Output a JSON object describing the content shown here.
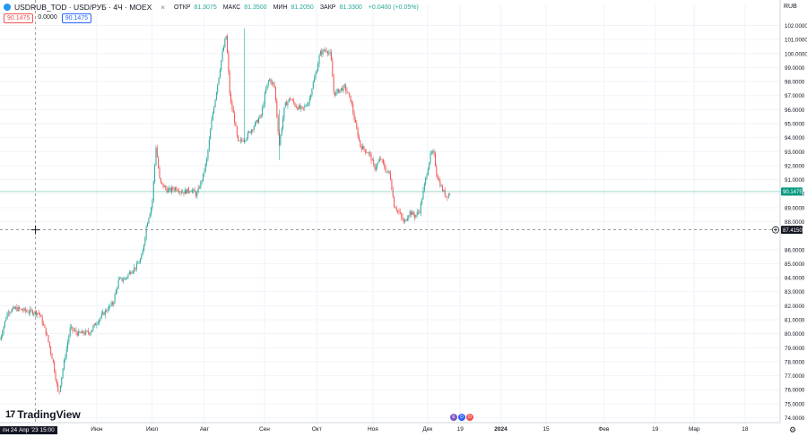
{
  "header": {
    "symbol": "USDRUB_TOD · USD/РУБ · 4Ч · MOEX",
    "open_label": "ОТКР",
    "open_value": "81.3075",
    "high_label": "МАКС",
    "high_value": "81.3500",
    "low_label": "МИН",
    "low_value": "81.2050",
    "close_label": "ЗАКР",
    "close_value": "81.3300",
    "change_value": "+0.0400 (+0.05%)",
    "close_glyph": "×"
  },
  "boxes": {
    "left": "90.1475",
    "middle": "0.0000",
    "right": "90.1475"
  },
  "currency": "RUB",
  "logo_text": "TradingView",
  "logo_mark": "17",
  "gear_glyph": "⚙",
  "events": [
    "E",
    "D",
    "D"
  ],
  "crosshair": {
    "date_label": "пн 24 Апр '23 15:00",
    "price_label": "87.4150",
    "price": 87.415,
    "x_fraction": 0.0455
  },
  "colors": {
    "up": "#26a69a",
    "down": "#ef5350",
    "last_price": "#089981",
    "crosshair_tag": "#131722",
    "grid": "#f0f3fa"
  },
  "chart_data": {
    "type": "candlestick",
    "x_labels": [
      "Июн",
      "Июл",
      "Авг",
      "Сен",
      "Окт",
      "Ноя",
      "Дек",
      "19",
      "2024",
      "15",
      "Фев",
      "19",
      "Мар",
      "18"
    ],
    "x_label_fraction": [
      0.124,
      0.195,
      0.262,
      0.339,
      0.406,
      0.478,
      0.548,
      0.59,
      0.642,
      0.7,
      0.774,
      0.84,
      0.89,
      0.955
    ],
    "y_ticks": [
      "102.0000",
      "101.0000",
      "100.0000",
      "99.0000",
      "98.0000",
      "97.0000",
      "96.0000",
      "95.0000",
      "94.0000",
      "93.0000",
      "92.0000",
      "91.0000",
      "90.0000",
      "89.0000",
      "88.0000",
      "86.0000",
      "85.0000",
      "84.0000",
      "83.0000",
      "82.0000",
      "81.0000",
      "80.0000",
      "79.0000",
      "78.0000",
      "77.0000",
      "76.0000",
      "75.0000",
      "74.0000"
    ],
    "ylim": [
      74,
      102
    ],
    "last_price": 90.1475,
    "last_price_label": "90.1475",
    "path": [
      [
        0.0,
        79.6
      ],
      [
        0.01,
        81.6
      ],
      [
        0.02,
        81.8
      ],
      [
        0.035,
        81.6
      ],
      [
        0.05,
        81.5
      ],
      [
        0.06,
        79.9
      ],
      [
        0.068,
        78.0
      ],
      [
        0.075,
        75.6
      ],
      [
        0.08,
        77.3
      ],
      [
        0.09,
        80.4
      ],
      [
        0.1,
        80.0
      ],
      [
        0.115,
        80.1
      ],
      [
        0.125,
        80.9
      ],
      [
        0.135,
        81.6
      ],
      [
        0.145,
        82.2
      ],
      [
        0.152,
        83.8
      ],
      [
        0.16,
        83.9
      ],
      [
        0.168,
        84.5
      ],
      [
        0.175,
        84.8
      ],
      [
        0.182,
        85.5
      ],
      [
        0.188,
        87.8
      ],
      [
        0.195,
        89.3
      ],
      [
        0.2,
        93.4
      ],
      [
        0.205,
        90.8
      ],
      [
        0.215,
        90.2
      ],
      [
        0.225,
        90.4
      ],
      [
        0.235,
        90.1
      ],
      [
        0.245,
        90.3
      ],
      [
        0.252,
        89.9
      ],
      [
        0.26,
        91.2
      ],
      [
        0.265,
        92.4
      ],
      [
        0.272,
        95.5
      ],
      [
        0.28,
        98.2
      ],
      [
        0.285,
        100.0
      ],
      [
        0.29,
        101.3
      ],
      [
        0.295,
        96.7
      ],
      [
        0.3,
        95.5
      ],
      [
        0.305,
        93.6
      ],
      [
        0.315,
        94.0
      ],
      [
        0.325,
        94.8
      ],
      [
        0.335,
        95.6
      ],
      [
        0.34,
        97.2
      ],
      [
        0.345,
        98.2
      ],
      [
        0.352,
        97.6
      ],
      [
        0.358,
        93.5
      ],
      [
        0.365,
        96.3
      ],
      [
        0.372,
        96.8
      ],
      [
        0.38,
        96.2
      ],
      [
        0.388,
        96.0
      ],
      [
        0.396,
        96.6
      ],
      [
        0.4,
        97.6
      ],
      [
        0.405,
        98.6
      ],
      [
        0.41,
        100.0
      ],
      [
        0.418,
        100.3
      ],
      [
        0.424,
        99.9
      ],
      [
        0.428,
        97.1
      ],
      [
        0.435,
        97.4
      ],
      [
        0.442,
        97.6
      ],
      [
        0.45,
        96.6
      ],
      [
        0.455,
        95.1
      ],
      [
        0.462,
        93.4
      ],
      [
        0.468,
        93.1
      ],
      [
        0.474,
        92.8
      ],
      [
        0.48,
        91.8
      ],
      [
        0.488,
        92.5
      ],
      [
        0.495,
        91.6
      ],
      [
        0.5,
        91.4
      ],
      [
        0.505,
        89.2
      ],
      [
        0.512,
        88.6
      ],
      [
        0.518,
        87.9
      ],
      [
        0.525,
        88.7
      ],
      [
        0.532,
        88.4
      ],
      [
        0.538,
        88.8
      ],
      [
        0.545,
        90.9
      ],
      [
        0.552,
        92.8
      ],
      [
        0.556,
        92.9
      ],
      [
        0.56,
        91.3
      ],
      [
        0.566,
        90.4
      ],
      [
        0.572,
        89.8
      ],
      [
        0.578,
        90.1
      ]
    ]
  }
}
